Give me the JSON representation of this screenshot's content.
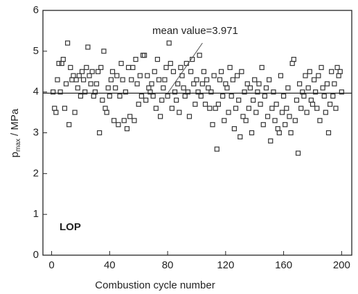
{
  "chart_data": {
    "type": "scatter",
    "xlabel": "Combustion cycle number",
    "ylabel": "p",
    "ylabel_sub": "max",
    "ylabel_unit": "/ MPa",
    "annotation": "mean value=3.971",
    "mean": 3.971,
    "label": "LOP",
    "color": "#333333",
    "xlim": [
      -6,
      207
    ],
    "ylim": [
      0,
      6
    ],
    "xticks": [
      0,
      40,
      80,
      120,
      160,
      200
    ],
    "yticks": [
      0,
      1,
      2,
      3,
      4,
      5,
      6
    ],
    "x": [
      1,
      2,
      3,
      4,
      5,
      6,
      7,
      8,
      9,
      10,
      11,
      12,
      13,
      14,
      15,
      16,
      17,
      18,
      19,
      20,
      21,
      22,
      23,
      24,
      25,
      26,
      27,
      28,
      29,
      30,
      31,
      32,
      33,
      34,
      35,
      36,
      37,
      38,
      39,
      40,
      41,
      42,
      43,
      44,
      45,
      46,
      47,
      48,
      49,
      50,
      51,
      52,
      53,
      54,
      55,
      56,
      57,
      58,
      59,
      60,
      61,
      62,
      63,
      64,
      65,
      66,
      67,
      68,
      69,
      70,
      71,
      72,
      73,
      74,
      75,
      76,
      77,
      78,
      79,
      80,
      81,
      82,
      83,
      84,
      85,
      86,
      87,
      88,
      89,
      90,
      91,
      92,
      93,
      94,
      95,
      96,
      97,
      98,
      99,
      100,
      101,
      102,
      103,
      104,
      105,
      106,
      107,
      108,
      109,
      110,
      111,
      112,
      113,
      114,
      115,
      116,
      117,
      118,
      119,
      120,
      121,
      122,
      123,
      124,
      125,
      126,
      127,
      128,
      129,
      130,
      131,
      132,
      133,
      134,
      135,
      136,
      137,
      138,
      139,
      140,
      141,
      142,
      143,
      144,
      145,
      146,
      147,
      148,
      149,
      150,
      151,
      152,
      153,
      154,
      155,
      156,
      157,
      158,
      159,
      160,
      161,
      162,
      163,
      164,
      165,
      166,
      167,
      168,
      169,
      170,
      171,
      172,
      173,
      174,
      175,
      176,
      177,
      178,
      179,
      180,
      181,
      182,
      183,
      184,
      185,
      186,
      187,
      188,
      189,
      190,
      191,
      192,
      193,
      194,
      195,
      196,
      197,
      198,
      199,
      200
    ],
    "y": [
      4.0,
      3.6,
      3.5,
      4.3,
      4.7,
      4.0,
      4.7,
      4.8,
      3.6,
      4.2,
      5.2,
      3.2,
      4.6,
      4.3,
      4.4,
      3.5,
      4.3,
      4.1,
      4.4,
      3.9,
      4.5,
      4.3,
      4.0,
      4.6,
      5.1,
      4.4,
      4.2,
      4.5,
      3.9,
      4.0,
      4.2,
      4.5,
      3.0,
      4.6,
      3.8,
      5.0,
      3.6,
      3.5,
      4.1,
      3.9,
      4.3,
      4.5,
      3.3,
      4.1,
      4.4,
      3.2,
      3.9,
      4.7,
      4.3,
      3.3,
      4.0,
      3.1,
      4.6,
      3.4,
      4.3,
      4.6,
      3.3,
      4.8,
      4.2,
      3.7,
      4.4,
      3.9,
      4.9,
      4.9,
      3.8,
      4.4,
      4.1,
      4.0,
      4.2,
      3.9,
      4.5,
      3.6,
      4.8,
      4.3,
      3.4,
      3.8,
      4.1,
      4.3,
      4.6,
      3.9,
      5.2,
      4.7,
      3.6,
      4.5,
      4.0,
      3.8,
      4.2,
      3.5,
      4.6,
      4.4,
      4.1,
      3.9,
      4.7,
      4.0,
      3.4,
      4.5,
      4.8,
      4.2,
      3.7,
      4.3,
      4.0,
      4.9,
      3.9,
      4.2,
      4.5,
      3.7,
      4.3,
      4.1,
      3.6,
      4.0,
      3.2,
      4.4,
      3.6,
      2.6,
      3.7,
      4.3,
      4.5,
      3.9,
      3.3,
      4.2,
      4.1,
      3.5,
      4.6,
      3.9,
      4.3,
      3.1,
      3.6,
      4.4,
      3.8,
      2.9,
      4.5,
      3.4,
      4.0,
      3.3,
      4.2,
      3.6,
      4.1,
      3.0,
      3.8,
      4.3,
      3.5,
      4.0,
      4.2,
      3.7,
      4.6,
      3.2,
      3.9,
      4.1,
      3.4,
      4.3,
      2.8,
      3.6,
      4.0,
      3.3,
      3.7,
      3.1,
      3.0,
      4.4,
      3.5,
      3.9,
      3.2,
      3.6,
      4.1,
      3.4,
      3.0,
      4.7,
      4.8,
      3.3,
      3.8,
      2.5,
      4.2,
      3.6,
      4.0,
      3.9,
      4.4,
      3.5,
      4.1,
      4.5,
      3.8,
      3.7,
      4.3,
      4.0,
      3.6,
      4.4,
      3.3,
      4.6,
      4.1,
      3.9,
      3.5,
      4.2,
      3.0,
      3.7,
      4.5,
      3.9,
      4.2,
      3.6,
      4.6,
      4.4,
      4.5,
      4.0
    ]
  }
}
